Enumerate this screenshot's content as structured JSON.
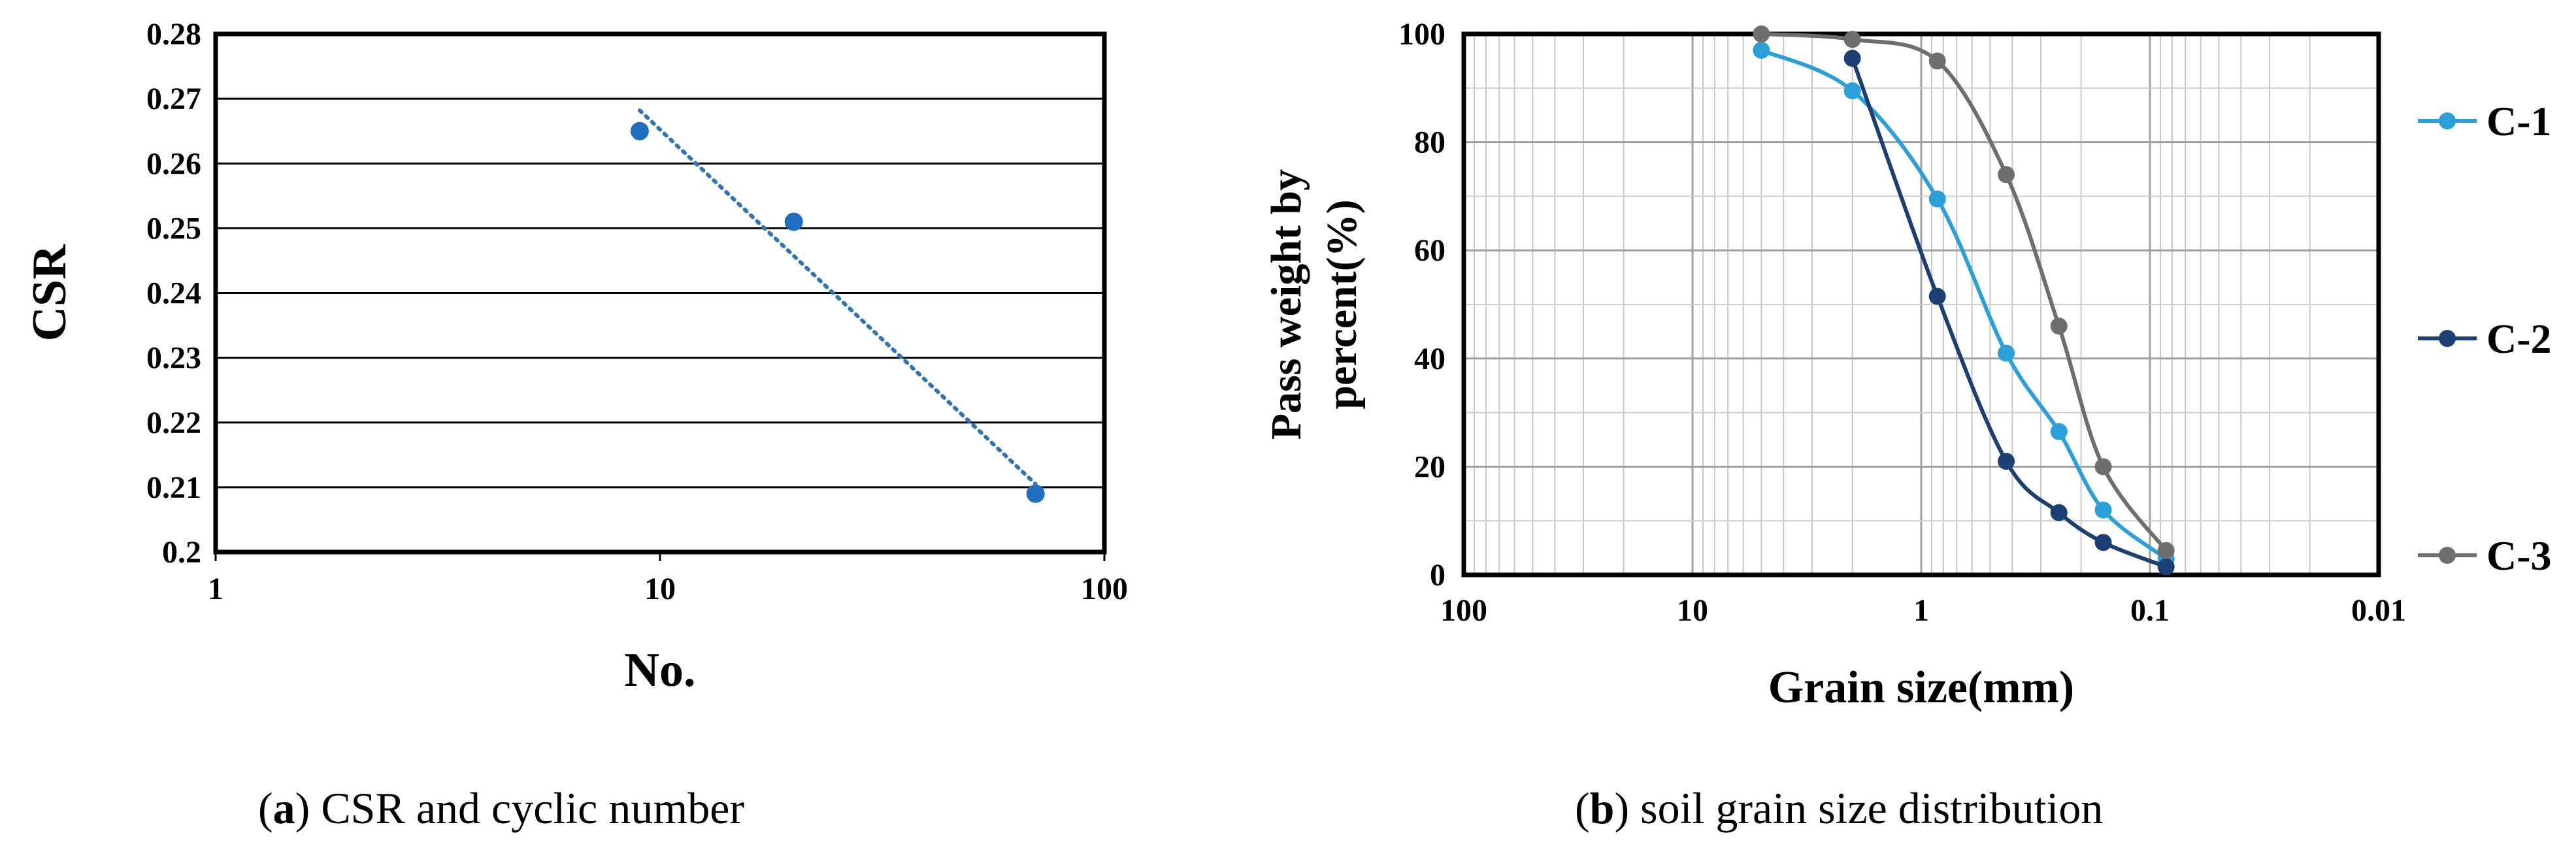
{
  "chart_data": [
    {
      "type": "scatter",
      "id": "a",
      "xscale": "log",
      "xlim": [
        1,
        100
      ],
      "ylim": [
        0.2,
        0.28
      ],
      "xticks": [
        1,
        10,
        100
      ],
      "xtick_labels": [
        "1",
        "10",
        "100"
      ],
      "yticks": [
        0.2,
        0.21,
        0.22,
        0.23,
        0.24,
        0.25,
        0.26,
        0.27,
        0.28
      ],
      "ytick_labels": [
        "0.2",
        "0.21",
        "0.22",
        "0.23",
        "0.24",
        "0.25",
        "0.26",
        "0.27",
        "0.28"
      ],
      "xlabel": "No.",
      "ylabel": "CSR",
      "grid": "horizontal",
      "series": [
        {
          "name": "CSR",
          "color": "#1f6fc0",
          "x": [
            9,
            20,
            70
          ],
          "y": [
            0.265,
            0.251,
            0.209
          ]
        }
      ],
      "trendline": {
        "style": "dotted",
        "color": "#2e75b6",
        "x": [
          9,
          70
        ],
        "y": [
          0.2682,
          0.2105
        ]
      }
    },
    {
      "type": "line",
      "id": "b",
      "xscale": "log",
      "x_reversed": true,
      "xlim": [
        100,
        0.01
      ],
      "ylim": [
        0,
        100
      ],
      "xticks": [
        100,
        10,
        1,
        0.1,
        0.01
      ],
      "xtick_labels": [
        "100",
        "10",
        "1",
        "0.1",
        "0.01"
      ],
      "yticks": [
        0,
        20,
        40,
        60,
        80,
        100
      ],
      "ytick_labels": [
        "0",
        "20",
        "40",
        "60",
        "80",
        "100"
      ],
      "xlabel": "Grain size(mm)",
      "ylabel_lines": [
        "Pass weight by",
        "percent(%)"
      ],
      "grid": "log-both",
      "legend_position": "right",
      "series": [
        {
          "name": "C-1",
          "color": "#2a9fd8",
          "x": [
            5,
            2,
            0.85,
            0.425,
            0.25,
            0.16,
            0.085
          ],
          "y": [
            97,
            89.5,
            69.5,
            41,
            26.5,
            12,
            3
          ]
        },
        {
          "name": "C-2",
          "color": "#1b3f73",
          "x": [
            2,
            0.85,
            0.425,
            0.25,
            0.16,
            0.085
          ],
          "y": [
            95.5,
            51.5,
            21,
            11.5,
            6,
            1.5
          ]
        },
        {
          "name": "C-3",
          "color": "#6e6e6e",
          "x": [
            5,
            2,
            0.85,
            0.425,
            0.25,
            0.16,
            0.085
          ],
          "y": [
            100,
            99,
            95,
            74,
            46,
            20,
            4.5
          ]
        }
      ]
    }
  ],
  "captions": {
    "a_letter": "a",
    "a_text": " CSR and cyclic number",
    "b_letter": "b",
    "b_text": " soil grain size distribution"
  }
}
